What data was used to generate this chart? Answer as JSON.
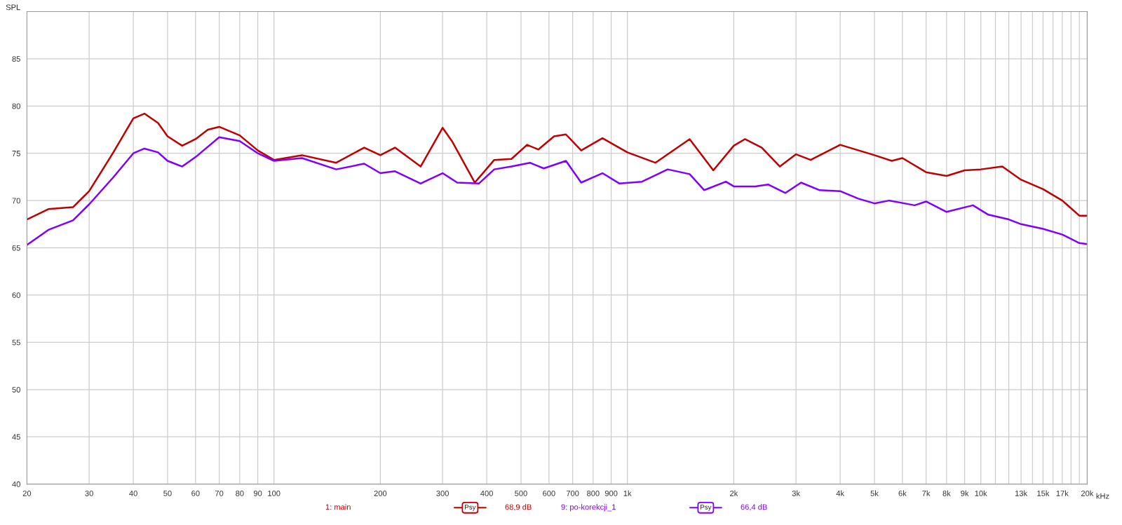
{
  "chart_data": {
    "type": "line",
    "ylabel": "SPL",
    "log": "x",
    "grid": true,
    "legend": "bottom",
    "line_style": "solid",
    "marker": "none",
    "xlim": [
      20,
      20000
    ],
    "ylim": [
      40,
      90
    ],
    "xticks": [
      20,
      30,
      40,
      50,
      60,
      70,
      80,
      90,
      100,
      200,
      300,
      400,
      500,
      600,
      700,
      800,
      900,
      {
        "value": 1000,
        "label": "1k"
      },
      {
        "value": 2000,
        "label": "2k"
      },
      {
        "value": 3000,
        "label": "3k"
      },
      {
        "value": 4000,
        "label": "4k"
      },
      {
        "value": 5000,
        "label": "5k"
      },
      {
        "value": 6000,
        "label": "6k"
      },
      {
        "value": 7000,
        "label": "7k"
      },
      {
        "value": 8000,
        "label": "8k"
      },
      {
        "value": 9000,
        "label": "9k"
      },
      {
        "value": 10000,
        "label": "10k"
      },
      {
        "value": 11000,
        "label": null
      },
      {
        "value": 12000,
        "label": null
      },
      {
        "value": 13000,
        "label": "13k"
      },
      {
        "value": 14000,
        "label": null
      },
      {
        "value": 15000,
        "label": "15k"
      },
      {
        "value": 16000,
        "label": null
      },
      {
        "value": 17000,
        "label": "17k"
      },
      {
        "value": 18000,
        "label": null
      },
      {
        "value": 19000,
        "label": null
      },
      {
        "value": 20000,
        "label": "20k"
      }
    ],
    "xlabel": "kHz",
    "yticks": [
      40,
      45,
      50,
      55,
      60,
      65,
      70,
      75,
      80,
      85
    ],
    "annotations": [
      "Psy",
      "68,9 dB",
      "Psy",
      "66,4 dB"
    ],
    "series": [
      {
        "name": "1: main",
        "color": "#c00000",
        "x": [
          20,
          23,
          27,
          30,
          35,
          40,
          43,
          47,
          50,
          55,
          60,
          65,
          70,
          80,
          90,
          100,
          120,
          150,
          180,
          200,
          220,
          260,
          300,
          320,
          370,
          420,
          470,
          520,
          560,
          620,
          670,
          740,
          850,
          1000,
          1200,
          1500,
          1750,
          2000,
          2150,
          2400,
          2700,
          3000,
          3300,
          4000,
          5000,
          5600,
          6000,
          7000,
          8000,
          9000,
          10000,
          11500,
          13000,
          15000,
          17000,
          19000,
          20000
        ],
        "values": [
          68.0,
          69.1,
          69.3,
          71.0,
          75.0,
          78.7,
          79.2,
          78.2,
          76.8,
          75.8,
          76.5,
          77.5,
          77.8,
          76.9,
          75.3,
          74.3,
          74.8,
          74.0,
          75.6,
          74.8,
          75.6,
          73.6,
          77.7,
          76.2,
          71.9,
          74.3,
          74.4,
          75.9,
          75.4,
          76.8,
          77.0,
          75.3,
          76.6,
          75.1,
          74.0,
          76.5,
          73.2,
          75.8,
          76.5,
          75.6,
          73.6,
          74.9,
          74.3,
          75.9,
          74.8,
          74.2,
          74.5,
          73.0,
          72.6,
          73.2,
          73.3,
          73.6,
          72.2,
          71.2,
          70.0,
          68.4,
          68.4
        ]
      },
      {
        "name": "9: po-korekcji_1",
        "color": "#8000ff",
        "x": [
          20,
          23,
          27,
          30,
          35,
          40,
          43,
          47,
          50,
          55,
          60,
          70,
          80,
          90,
          100,
          120,
          150,
          180,
          200,
          220,
          260,
          300,
          330,
          380,
          420,
          470,
          530,
          580,
          670,
          740,
          850,
          950,
          1100,
          1300,
          1500,
          1650,
          1900,
          2000,
          2300,
          2500,
          2800,
          3100,
          3500,
          4000,
          4500,
          5000,
          5500,
          6500,
          7000,
          8000,
          9500,
          10500,
          12000,
          13000,
          15000,
          17000,
          19000,
          20000
        ],
        "values": [
          65.3,
          66.9,
          67.9,
          69.6,
          72.4,
          75.0,
          75.5,
          75.1,
          74.2,
          73.6,
          74.6,
          76.7,
          76.3,
          75.0,
          74.2,
          74.5,
          73.3,
          73.9,
          72.9,
          73.1,
          71.8,
          72.9,
          71.9,
          71.8,
          73.3,
          73.6,
          74.0,
          73.4,
          74.2,
          71.9,
          72.9,
          71.8,
          72.0,
          73.3,
          72.8,
          71.1,
          72.0,
          71.5,
          71.5,
          71.7,
          70.8,
          71.9,
          71.1,
          71.0,
          70.2,
          69.7,
          70.0,
          69.5,
          69.9,
          68.8,
          69.5,
          68.5,
          68.0,
          67.5,
          67.0,
          66.4,
          65.5,
          65.4
        ]
      }
    ]
  }
}
